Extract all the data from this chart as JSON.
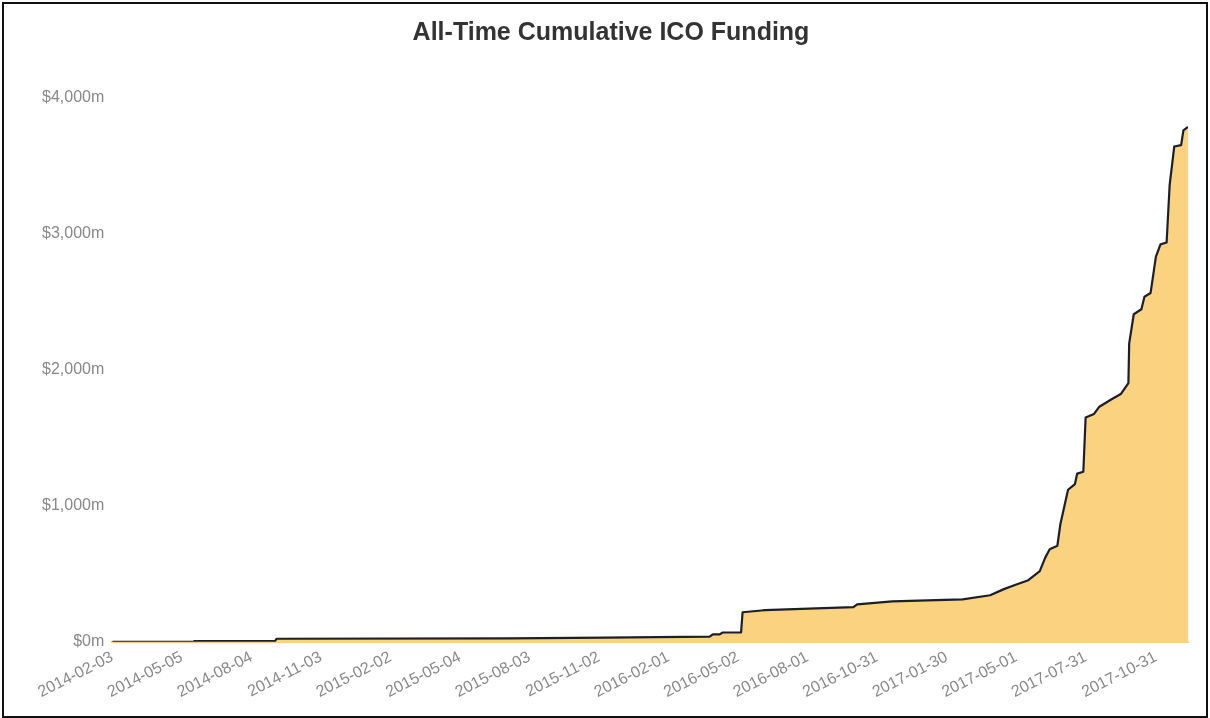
{
  "chart_data": {
    "type": "area",
    "title": "All-Time Cumulative ICO Funding",
    "x": [
      "2014-02-03",
      "2014-05-20",
      "2014-05-22",
      "2014-09-04",
      "2014-09-06",
      "2015-07-08",
      "2015-11-10",
      "2016-03-26",
      "2016-03-30",
      "2016-04-08",
      "2016-04-12",
      "2016-05-06",
      "2016-05-08",
      "2016-06-06",
      "2016-09-30",
      "2016-10-05",
      "2016-11-20",
      "2017-02-20",
      "2017-03-28",
      "2017-04-15",
      "2017-05-17",
      "2017-06-01",
      "2017-06-08",
      "2017-06-14",
      "2017-06-24",
      "2017-06-28",
      "2017-07-08",
      "2017-07-17",
      "2017-07-20",
      "2017-07-28",
      "2017-07-31",
      "2017-08-11",
      "2017-08-18",
      "2017-09-03",
      "2017-09-15",
      "2017-09-25",
      "2017-09-26",
      "2017-10-02",
      "2017-10-12",
      "2017-10-16",
      "2017-10-24",
      "2017-10-31",
      "2017-11-06",
      "2017-11-14",
      "2017-11-18",
      "2017-11-24",
      "2017-12-03",
      "2017-12-06",
      "2017-12-12"
    ],
    "series": [
      {
        "color": "#fbd27f",
        "values": [
          0,
          0,
          5,
          5,
          22,
          25,
          30,
          37,
          54,
          54,
          68,
          68,
          217,
          232,
          254,
          275,
          297,
          312,
          342,
          387,
          453,
          520,
          617,
          680,
          706,
          866,
          1118,
          1160,
          1237,
          1251,
          1650,
          1676,
          1729,
          1784,
          1822,
          1903,
          2193,
          2409,
          2446,
          2538,
          2565,
          2833,
          2923,
          2937,
          3361,
          3643,
          3653,
          3762,
          3787
        ]
      }
    ],
    "xlim": [
      "2014-02-03",
      "2017-12-12"
    ],
    "xticks": [
      "2014-02-03",
      "2014-05-05",
      "2014-08-04",
      "2014-11-03",
      "2015-02-02",
      "2015-05-04",
      "2015-08-03",
      "2015-11-02",
      "2016-02-01",
      "2016-05-02",
      "2016-08-01",
      "2016-10-31",
      "2017-01-30",
      "2017-05-01",
      "2017-07-31",
      "2017-10-31"
    ],
    "ylim": [
      0,
      4000
    ],
    "yticks": [
      {
        "value": 0,
        "label": "$0m"
      },
      {
        "value": 1000,
        "label": "$1,000m"
      },
      {
        "value": 2000,
        "label": "$2,000m"
      },
      {
        "value": 3000,
        "label": "$3,000m"
      },
      {
        "value": 4000,
        "label": "$4,000m"
      }
    ],
    "grid": false,
    "legend": false,
    "marker": "none",
    "line_style": "solid"
  }
}
